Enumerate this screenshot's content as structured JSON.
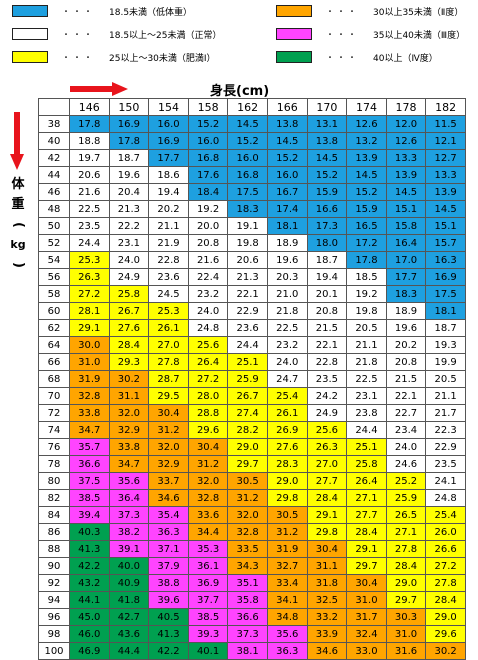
{
  "legend": [
    {
      "key": "under",
      "color": "#1ea0e0",
      "dots": "・・・",
      "text": "18.5未満（低体重）"
    },
    {
      "key": "ob2",
      "color": "#ffa500",
      "dots": "・・・",
      "text": "30以上35未満（Ⅱ度）"
    },
    {
      "key": "normal",
      "color": "#ffffff",
      "dots": "・・・",
      "text": "18.5以上～25未満（正常）"
    },
    {
      "key": "ob3",
      "color": "#ff44ff",
      "dots": "・・・",
      "text": "35以上40未満（Ⅲ度）"
    },
    {
      "key": "ob1",
      "color": "#ffff00",
      "dots": "・・・",
      "text": "25以上～30未満（肥満Ⅰ）"
    },
    {
      "key": "ob4",
      "color": "#00a050",
      "dots": "・・・",
      "text": "40以上（Ⅳ度）"
    }
  ],
  "labels": {
    "height": "身長(cm)",
    "weight_chars": [
      "体",
      "重",
      "(",
      "kg",
      ")"
    ]
  },
  "chart_data": {
    "type": "table",
    "heights": [
      146,
      150,
      154,
      158,
      162,
      166,
      170,
      174,
      178,
      182
    ],
    "weights": [
      38,
      40,
      42,
      44,
      46,
      48,
      50,
      52,
      54,
      56,
      58,
      60,
      62,
      64,
      66,
      68,
      70,
      72,
      74,
      76,
      78,
      80,
      82,
      84,
      86,
      88,
      90,
      92,
      94,
      96,
      98,
      100
    ],
    "values": [
      [
        "17.8",
        "16.9",
        "16.0",
        "15.2",
        "14.5",
        "13.8",
        "13.1",
        "12.6",
        "12.0",
        "11.5"
      ],
      [
        "18.8",
        "17.8",
        "16.9",
        "16.0",
        "15.2",
        "14.5",
        "13.8",
        "13.2",
        "12.6",
        "12.1"
      ],
      [
        "19.7",
        "18.7",
        "17.7",
        "16.8",
        "16.0",
        "15.2",
        "14.5",
        "13.9",
        "13.3",
        "12.7"
      ],
      [
        "20.6",
        "19.6",
        "18.6",
        "17.6",
        "16.8",
        "16.0",
        "15.2",
        "14.5",
        "13.9",
        "13.3"
      ],
      [
        "21.6",
        "20.4",
        "19.4",
        "18.4",
        "17.5",
        "16.7",
        "15.9",
        "15.2",
        "14.5",
        "13.9"
      ],
      [
        "22.5",
        "21.3",
        "20.2",
        "19.2",
        "18.3",
        "17.4",
        "16.6",
        "15.9",
        "15.1",
        "14.5"
      ],
      [
        "23.5",
        "22.2",
        "21.1",
        "20.0",
        "19.1",
        "18.1",
        "17.3",
        "16.5",
        "15.8",
        "15.1"
      ],
      [
        "24.4",
        "23.1",
        "21.9",
        "20.8",
        "19.8",
        "18.9",
        "18.0",
        "17.2",
        "16.4",
        "15.7"
      ],
      [
        "25.3",
        "24.0",
        "22.8",
        "21.6",
        "20.6",
        "19.6",
        "18.7",
        "17.8",
        "17.0",
        "16.3"
      ],
      [
        "26.3",
        "24.9",
        "23.6",
        "22.4",
        "21.3",
        "20.3",
        "19.4",
        "18.5",
        "17.7",
        "16.9"
      ],
      [
        "27.2",
        "25.8",
        "24.5",
        "23.2",
        "22.1",
        "21.0",
        "20.1",
        "19.2",
        "18.3",
        "17.5"
      ],
      [
        "28.1",
        "26.7",
        "25.3",
        "24.0",
        "22.9",
        "21.8",
        "20.8",
        "19.8",
        "18.9",
        "18.1"
      ],
      [
        "29.1",
        "27.6",
        "26.1",
        "24.8",
        "23.6",
        "22.5",
        "21.5",
        "20.5",
        "19.6",
        "18.7"
      ],
      [
        "30.0",
        "28.4",
        "27.0",
        "25.6",
        "24.4",
        "23.2",
        "22.1",
        "21.1",
        "20.2",
        "19.3"
      ],
      [
        "31.0",
        "29.3",
        "27.8",
        "26.4",
        "25.1",
        "24.0",
        "22.8",
        "21.8",
        "20.8",
        "19.9"
      ],
      [
        "31.9",
        "30.2",
        "28.7",
        "27.2",
        "25.9",
        "24.7",
        "23.5",
        "22.5",
        "21.5",
        "20.5"
      ],
      [
        "32.8",
        "31.1",
        "29.5",
        "28.0",
        "26.7",
        "25.4",
        "24.2",
        "23.1",
        "22.1",
        "21.1"
      ],
      [
        "33.8",
        "32.0",
        "30.4",
        "28.8",
        "27.4",
        "26.1",
        "24.9",
        "23.8",
        "22.7",
        "21.7"
      ],
      [
        "34.7",
        "32.9",
        "31.2",
        "29.6",
        "28.2",
        "26.9",
        "25.6",
        "24.4",
        "23.4",
        "22.3"
      ],
      [
        "35.7",
        "33.8",
        "32.0",
        "30.4",
        "29.0",
        "27.6",
        "26.3",
        "25.1",
        "24.0",
        "22.9"
      ],
      [
        "36.6",
        "34.7",
        "32.9",
        "31.2",
        "29.7",
        "28.3",
        "27.0",
        "25.8",
        "24.6",
        "23.5"
      ],
      [
        "37.5",
        "35.6",
        "33.7",
        "32.0",
        "30.5",
        "29.0",
        "27.7",
        "26.4",
        "25.2",
        "24.1"
      ],
      [
        "38.5",
        "36.4",
        "34.6",
        "32.8",
        "31.2",
        "29.8",
        "28.4",
        "27.1",
        "25.9",
        "24.8"
      ],
      [
        "39.4",
        "37.3",
        "35.4",
        "33.6",
        "32.0",
        "30.5",
        "29.1",
        "27.7",
        "26.5",
        "25.4"
      ],
      [
        "40.3",
        "38.2",
        "36.3",
        "34.4",
        "32.8",
        "31.2",
        "29.8",
        "28.4",
        "27.1",
        "26.0"
      ],
      [
        "41.3",
        "39.1",
        "37.1",
        "35.3",
        "33.5",
        "31.9",
        "30.4",
        "29.1",
        "27.8",
        "26.6"
      ],
      [
        "42.2",
        "40.0",
        "37.9",
        "36.1",
        "34.3",
        "32.7",
        "31.1",
        "29.7",
        "28.4",
        "27.2"
      ],
      [
        "43.2",
        "40.9",
        "38.8",
        "36.9",
        "35.1",
        "33.4",
        "31.8",
        "30.4",
        "29.0",
        "27.8"
      ],
      [
        "44.1",
        "41.8",
        "39.6",
        "37.7",
        "35.8",
        "34.1",
        "32.5",
        "31.0",
        "29.7",
        "28.4"
      ],
      [
        "45.0",
        "42.7",
        "40.5",
        "38.5",
        "36.6",
        "34.8",
        "33.2",
        "31.7",
        "30.3",
        "29.0"
      ],
      [
        "46.0",
        "43.6",
        "41.3",
        "39.3",
        "37.3",
        "35.6",
        "33.9",
        "32.4",
        "31.0",
        "29.6"
      ],
      [
        "46.9",
        "44.4",
        "42.2",
        "40.1",
        "38.1",
        "36.3",
        "34.6",
        "33.0",
        "31.6",
        "30.2"
      ]
    ],
    "categories": {
      "under": {
        "label": "18.5未満（低体重）",
        "color": "#1ea0e0"
      },
      "normal": {
        "label": "18.5以上～25未満（正常）",
        "color": "#ffffff"
      },
      "ob1": {
        "label": "25以上～30未満（肥満Ⅰ）",
        "color": "#ffff00"
      },
      "ob2": {
        "label": "30以上35未満（Ⅱ度）",
        "color": "#ffa500"
      },
      "ob3": {
        "label": "35以上40未満（Ⅲ度）",
        "color": "#ff44ff"
      },
      "ob4": {
        "label": "40以上（Ⅳ度）",
        "color": "#00a050"
      }
    },
    "title": "",
    "xlabel": "身長(cm)",
    "ylabel": "体重(kg)"
  }
}
